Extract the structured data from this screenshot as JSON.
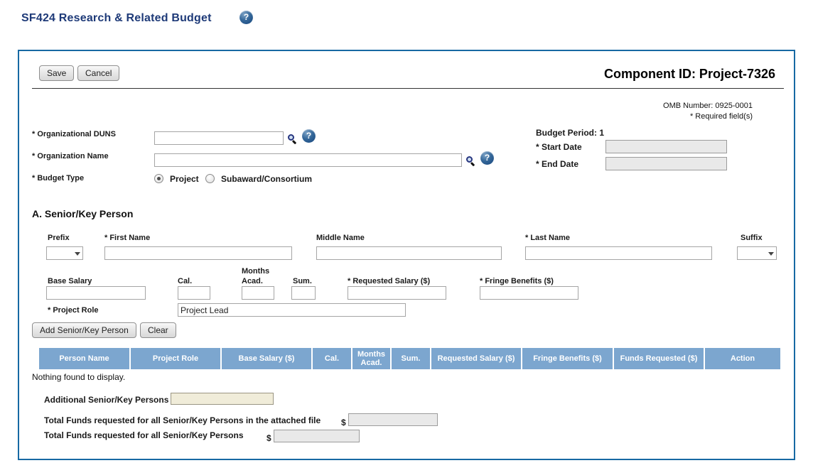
{
  "page": {
    "title": "SF424 Research & Related Budget",
    "help_glyph": "?"
  },
  "colors": {
    "title_text": "#1e3a78",
    "panel_border": "#1769a3",
    "table_header_bg": "#7ca6cf",
    "help_icon_blue": "#2b5f93",
    "disabled_input_bg": "#e9e9e9",
    "additional_input_bg": "#f0ecd9"
  },
  "toolbar": {
    "save_label": "Save",
    "cancel_label": "Cancel"
  },
  "header": {
    "component_id": "Component ID: Project-7326",
    "omb_number": "OMB Number: 0925-0001",
    "required_note": "* Required field(s)"
  },
  "org": {
    "duns_label": "* Organizational DUNS",
    "duns_value": "",
    "name_label": "* Organization Name",
    "name_value": "",
    "budget_type_label": "* Budget Type",
    "budget_type_options": [
      "Project",
      "Subaward/Consortium"
    ],
    "budget_type_selected": "Project"
  },
  "budget_period": {
    "label": "Budget Period: 1",
    "start_label": "* Start Date",
    "start_value": "",
    "end_label": "* End Date",
    "end_value": ""
  },
  "section_a": {
    "heading": "A. Senior/Key Person",
    "fields": {
      "prefix": "Prefix",
      "first_name": "* First Name",
      "middle_name": "Middle Name",
      "last_name": "* Last Name",
      "suffix": "Suffix",
      "base_salary": "Base Salary",
      "cal": "Cal.",
      "months": "Months",
      "acad": "Acad.",
      "sum": "Sum.",
      "requested_salary": "* Requested Salary ($)",
      "fringe_benefits": "* Fringe Benefits ($)",
      "project_role": "* Project Role"
    },
    "values": {
      "prefix": "",
      "first_name": "",
      "middle_name": "",
      "last_name": "",
      "suffix": "",
      "base_salary": "",
      "cal": "",
      "acad": "",
      "sum": "",
      "requested_salary": "",
      "fringe_benefits": "",
      "project_role": "Project Lead"
    },
    "add_button": "Add Senior/Key Person",
    "clear_button": "Clear"
  },
  "table": {
    "columns": [
      "Person Name",
      "Project Role",
      "Base Salary ($)",
      "Cal.",
      "Months Acad.",
      "Sum.",
      "Requested Salary ($)",
      "Fringe Benefits ($)",
      "Funds Requested ($)",
      "Action"
    ],
    "rows": [],
    "empty_text": "Nothing found to display."
  },
  "totals": {
    "additional_label": "Additional Senior/Key Persons",
    "additional_value": "",
    "attached_label": "Total Funds requested for all Senior/Key Persons in the attached file",
    "attached_value": "",
    "total_label": "Total Funds requested for all Senior/Key Persons",
    "total_value": "",
    "currency": "$"
  }
}
